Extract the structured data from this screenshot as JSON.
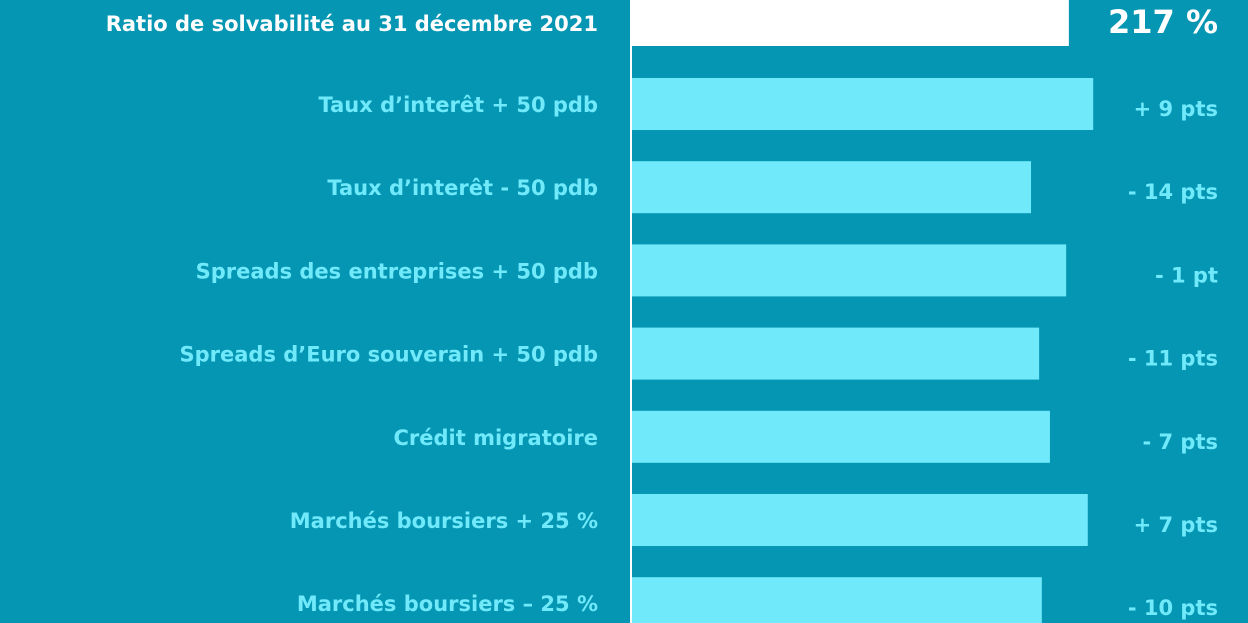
{
  "chart_data": {
    "type": "bar",
    "orientation": "horizontal",
    "base": {
      "label": "Ratio de solvabilité au 31 décembre 2021",
      "value": 217,
      "value_label": "217 %",
      "color": "#ffffff"
    },
    "categories": [
      "Taux d’interêt + 50 pdb",
      "Taux d’interêt - 50 pdb",
      "Spreads des entreprises + 50 pdb",
      "Spreads d’Euro souverain + 50 pdb",
      "Crédit migratoire",
      "Marchés boursiers + 25 %",
      "Marchés boursiers – 25 %"
    ],
    "values": [
      9,
      -14,
      -1,
      -11,
      -7,
      7,
      -10
    ],
    "value_labels": [
      "+ 9 pts",
      "- 14 pts",
      "- 1 pt",
      "- 11 pts",
      "- 7 pts",
      "+ 7 pts",
      "- 10 pts"
    ],
    "color": "#70e9fb",
    "xlim": [
      55,
      230
    ]
  }
}
